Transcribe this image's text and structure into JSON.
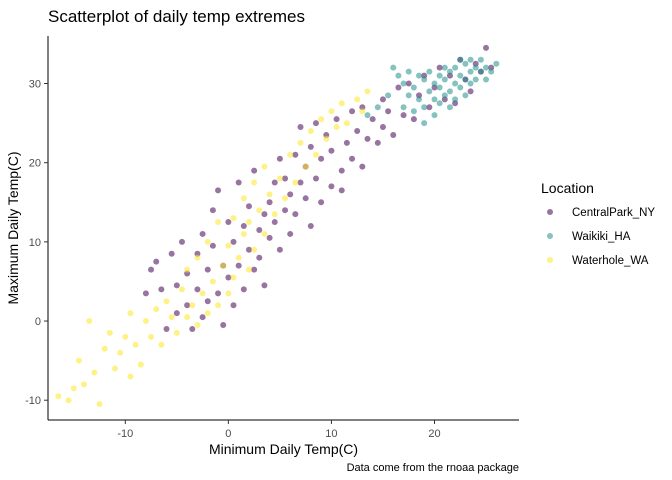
{
  "chart_data": {
    "type": "scatter",
    "title": "Scatterplot of daily temp extremes",
    "xlabel": "Minimum Daily Temp(C)",
    "ylabel": "Maximum Daily Temp(C)",
    "caption": "Data come from the rnoaa package",
    "xlim": [
      -17.5,
      28.2
    ],
    "ylim": [
      -12.5,
      36.0
    ],
    "xticks": [
      -10,
      0,
      10,
      20
    ],
    "xtick_labels": [
      "-10",
      "0",
      "10",
      "20"
    ],
    "yticks": [
      -10,
      0,
      10,
      20,
      30
    ],
    "ytick_labels": [
      "-10",
      "0",
      "10",
      "20",
      "30"
    ],
    "grid": false,
    "legend": {
      "title": "Location",
      "placement": "right"
    },
    "series": [
      {
        "name": "CentralPark_NY",
        "color": "#440154",
        "points": [
          [
            -8.0,
            3.5
          ],
          [
            -7.5,
            6.5
          ],
          [
            -7.0,
            7.5
          ],
          [
            -6.5,
            4.0
          ],
          [
            -6.0,
            -1.0
          ],
          [
            -5.5,
            8.5
          ],
          [
            -5.0,
            4.5
          ],
          [
            -5.0,
            1.0
          ],
          [
            -4.5,
            10.0
          ],
          [
            -4.0,
            2.0
          ],
          [
            -4.0,
            6.0
          ],
          [
            -3.5,
            -1.0
          ],
          [
            -3.0,
            8.5
          ],
          [
            -3.0,
            4.0
          ],
          [
            -2.5,
            0.5
          ],
          [
            -2.5,
            11.0
          ],
          [
            -2.0,
            6.5
          ],
          [
            -2.0,
            2.5
          ],
          [
            -1.5,
            14.0
          ],
          [
            -1.5,
            9.5
          ],
          [
            -1.0,
            3.5
          ],
          [
            -1.0,
            16.5
          ],
          [
            -0.5,
            -0.5
          ],
          [
            -0.5,
            7.0
          ],
          [
            0.0,
            12.5
          ],
          [
            0.0,
            5.5
          ],
          [
            0.5,
            2.0
          ],
          [
            0.5,
            10.0
          ],
          [
            1.0,
            17.5
          ],
          [
            1.0,
            7.0
          ],
          [
            1.5,
            4.0
          ],
          [
            1.5,
            12.0
          ],
          [
            2.0,
            9.0
          ],
          [
            2.0,
            14.5
          ],
          [
            2.5,
            6.5
          ],
          [
            2.5,
            19.0
          ],
          [
            3.0,
            11.5
          ],
          [
            3.0,
            8.0
          ],
          [
            3.5,
            13.5
          ],
          [
            3.5,
            4.5
          ],
          [
            4.0,
            15.0
          ],
          [
            4.0,
            10.5
          ],
          [
            4.5,
            17.5
          ],
          [
            4.5,
            12.5
          ],
          [
            5.0,
            20.5
          ],
          [
            5.0,
            9.0
          ],
          [
            5.5,
            14.0
          ],
          [
            5.5,
            18.0
          ],
          [
            6.0,
            11.0
          ],
          [
            6.0,
            16.0
          ],
          [
            6.5,
            21.0
          ],
          [
            6.5,
            13.5
          ],
          [
            7.0,
            17.5
          ],
          [
            7.0,
            24.5
          ],
          [
            7.5,
            15.5
          ],
          [
            7.5,
            19.5
          ],
          [
            8.0,
            12.0
          ],
          [
            8.0,
            22.0
          ],
          [
            8.5,
            18.0
          ],
          [
            8.5,
            25.0
          ],
          [
            9.0,
            20.5
          ],
          [
            9.0,
            15.0
          ],
          [
            9.5,
            23.5
          ],
          [
            10.0,
            17.0
          ],
          [
            10.0,
            21.5
          ],
          [
            10.5,
            25.5
          ],
          [
            11.0,
            19.0
          ],
          [
            11.0,
            16.5
          ],
          [
            11.5,
            22.5
          ],
          [
            12.0,
            26.5
          ],
          [
            12.0,
            20.5
          ],
          [
            12.5,
            24.0
          ],
          [
            13.0,
            19.5
          ],
          [
            13.0,
            27.0
          ],
          [
            13.5,
            23.0
          ],
          [
            14.0,
            25.5
          ],
          [
            14.5,
            22.5
          ],
          [
            15.0,
            28.0
          ],
          [
            15.0,
            24.5
          ],
          [
            15.5,
            26.5
          ],
          [
            16.0,
            23.5
          ],
          [
            16.5,
            29.5
          ],
          [
            17.0,
            26.0
          ],
          [
            17.5,
            30.0
          ],
          [
            18.0,
            25.5
          ],
          [
            18.5,
            28.5
          ],
          [
            19.0,
            31.0
          ],
          [
            19.5,
            27.0
          ],
          [
            20.0,
            29.5
          ],
          [
            20.5,
            32.0
          ],
          [
            21.0,
            28.0
          ],
          [
            21.5,
            31.0
          ],
          [
            22.0,
            27.5
          ],
          [
            22.5,
            33.0
          ],
          [
            23.0,
            30.5
          ],
          [
            23.5,
            29.0
          ],
          [
            24.0,
            32.5
          ],
          [
            24.5,
            31.5
          ],
          [
            25.0,
            34.5
          ],
          [
            25.5,
            32.0
          ]
        ]
      },
      {
        "name": "Waikiki_HA",
        "color": "#21908C",
        "points": [
          [
            16.0,
            32.0
          ],
          [
            16.5,
            31.0
          ],
          [
            17.0,
            30.0
          ],
          [
            17.5,
            31.5
          ],
          [
            17.5,
            28.5
          ],
          [
            18.0,
            29.5
          ],
          [
            18.0,
            26.5
          ],
          [
            18.5,
            31.0
          ],
          [
            18.5,
            28.0
          ],
          [
            19.0,
            30.5
          ],
          [
            19.0,
            27.0
          ],
          [
            19.0,
            25.0
          ],
          [
            19.5,
            29.0
          ],
          [
            19.5,
            31.5
          ],
          [
            20.0,
            28.0
          ],
          [
            20.0,
            30.0
          ],
          [
            20.0,
            26.0
          ],
          [
            20.5,
            29.5
          ],
          [
            20.5,
            31.0
          ],
          [
            20.5,
            27.5
          ],
          [
            21.0,
            30.5
          ],
          [
            21.0,
            28.5
          ],
          [
            21.0,
            32.0
          ],
          [
            21.5,
            29.0
          ],
          [
            21.5,
            31.5
          ],
          [
            21.5,
            27.0
          ],
          [
            22.0,
            30.0
          ],
          [
            22.0,
            32.0
          ],
          [
            22.0,
            28.0
          ],
          [
            22.5,
            31.0
          ],
          [
            22.5,
            29.5
          ],
          [
            22.5,
            33.0
          ],
          [
            23.0,
            30.5
          ],
          [
            23.0,
            32.5
          ],
          [
            23.0,
            28.5
          ],
          [
            23.5,
            31.5
          ],
          [
            23.5,
            30.0
          ],
          [
            23.5,
            33.0
          ],
          [
            24.0,
            32.0
          ],
          [
            24.0,
            30.5
          ],
          [
            24.5,
            31.5
          ],
          [
            24.5,
            33.0
          ],
          [
            25.0,
            32.0
          ],
          [
            25.0,
            30.5
          ],
          [
            25.5,
            31.5
          ],
          [
            26.0,
            32.5
          ],
          [
            17.0,
            27.0
          ],
          [
            15.5,
            28.5
          ],
          [
            14.5,
            27.0
          ],
          [
            13.5,
            26.0
          ]
        ]
      },
      {
        "name": "Waterhole_WA",
        "color": "#FDE725",
        "points": [
          [
            -16.5,
            -9.5
          ],
          [
            -15.5,
            -10.0
          ],
          [
            -14.5,
            -5.0
          ],
          [
            -14.0,
            -8.0
          ],
          [
            -13.5,
            0.0
          ],
          [
            -13.0,
            -6.5
          ],
          [
            -12.5,
            -10.5
          ],
          [
            -12.0,
            -3.5
          ],
          [
            -11.5,
            -1.5
          ],
          [
            -11.0,
            -6.0
          ],
          [
            -10.5,
            -4.0
          ],
          [
            -10.0,
            -2.0
          ],
          [
            -9.5,
            1.0
          ],
          [
            -9.0,
            -3.0
          ],
          [
            -8.5,
            -5.5
          ],
          [
            -8.0,
            0.0
          ],
          [
            -7.5,
            -2.0
          ],
          [
            -7.0,
            1.5
          ],
          [
            -6.5,
            -3.0
          ],
          [
            -6.0,
            2.5
          ],
          [
            -5.5,
            0.5
          ],
          [
            -5.0,
            -1.5
          ],
          [
            -4.5,
            4.0
          ],
          [
            -4.0,
            0.5
          ],
          [
            -4.0,
            6.5
          ],
          [
            -3.5,
            2.0
          ],
          [
            -3.0,
            -0.5
          ],
          [
            -3.0,
            8.0
          ],
          [
            -2.5,
            3.5
          ],
          [
            -2.0,
            1.0
          ],
          [
            -2.0,
            10.0
          ],
          [
            -1.5,
            5.0
          ],
          [
            -1.0,
            2.0
          ],
          [
            -1.0,
            12.5
          ],
          [
            -0.5,
            7.0
          ],
          [
            0.0,
            3.5
          ],
          [
            0.0,
            9.5
          ],
          [
            0.5,
            13.0
          ],
          [
            0.5,
            5.5
          ],
          [
            1.0,
            8.0
          ],
          [
            1.5,
            11.0
          ],
          [
            1.5,
            15.5
          ],
          [
            2.0,
            6.5
          ],
          [
            2.0,
            12.5
          ],
          [
            2.5,
            9.0
          ],
          [
            2.5,
            17.5
          ],
          [
            3.0,
            14.0
          ],
          [
            3.5,
            11.0
          ],
          [
            3.5,
            19.5
          ],
          [
            4.0,
            16.0
          ],
          [
            4.5,
            13.5
          ],
          [
            5.0,
            18.0
          ],
          [
            5.5,
            15.5
          ],
          [
            6.0,
            21.0
          ],
          [
            6.5,
            17.5
          ],
          [
            7.0,
            22.5
          ],
          [
            7.5,
            19.5
          ],
          [
            8.0,
            24.0
          ],
          [
            8.5,
            21.0
          ],
          [
            9.0,
            25.5
          ],
          [
            9.5,
            23.0
          ],
          [
            10.0,
            26.5
          ],
          [
            10.5,
            24.5
          ],
          [
            11.0,
            27.5
          ],
          [
            11.5,
            25.0
          ],
          [
            12.5,
            28.0
          ],
          [
            13.0,
            26.5
          ],
          [
            13.5,
            29.0
          ],
          [
            -15.0,
            -8.5
          ],
          [
            -9.5,
            -7.0
          ]
        ]
      }
    ]
  }
}
